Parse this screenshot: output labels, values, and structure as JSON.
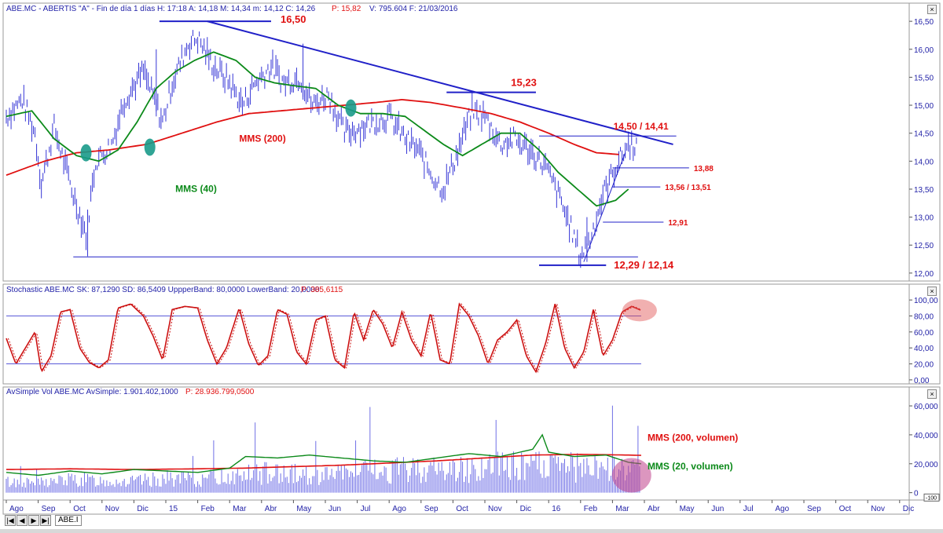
{
  "header": {
    "price": "ABE.MC - ABERTIS \"A\" - Fin de día 1 días H: 17:18 A: 14,18 M: 14,34 m: 14,12 C: 14,26",
    "price_p": "P: 15,82",
    "price_v": "V: 795.604 F: 21/03/2016",
    "stoch": "Stochastic  ABE.MC SK: 87,1290 SD: 86,5409 UppperBand: 80,0000 LowerBand: 20,0000",
    "stoch_p": "P: 385,6115",
    "vol": "AvSimple  Vol  ABE.MC AvSimple: 1.901.402,1000",
    "vol_p": "P: 28.936.799,0500"
  },
  "tabs": {
    "active": "ABE.I"
  },
  "colors": {
    "price": "#3535d6",
    "mms200": "#e01010",
    "mms40": "#0c8a1a",
    "trend": "#2020c8",
    "stoch": "#cc1010",
    "annot_red": "#e01010",
    "annot_green": "#0c8a1a",
    "band": "#5a5ad8",
    "vol_bar": "#6f6fe6"
  },
  "chart_data": [
    {
      "type": "line",
      "name": "price",
      "ylim": [
        11.9,
        16.6
      ],
      "yticks": [
        "16,50",
        "16,00",
        "15,50",
        "15,00",
        "14,50",
        "14,00",
        "13,50",
        "13,00",
        "12,50",
        "12,00"
      ],
      "ytick_values": [
        16.5,
        16.0,
        15.5,
        15.0,
        14.5,
        14.0,
        13.5,
        13.0,
        12.5,
        12.0
      ],
      "x_months": [
        "Ago",
        "Sep",
        "Oct",
        "Nov",
        "Dic",
        "15",
        "Feb",
        "Mar",
        "Abr",
        "May",
        "Jun",
        "Jul",
        "Ago",
        "Sep",
        "Oct",
        "Nov",
        "Dic",
        "16",
        "Feb",
        "Mar",
        "Abr",
        "May",
        "Jun",
        "Jul",
        "Ago",
        "Sep",
        "Oct",
        "Nov",
        "Dic"
      ],
      "x_month_indices": [
        0,
        1,
        2,
        3,
        4,
        5,
        6,
        7,
        8,
        9,
        10,
        11,
        12,
        13,
        14,
        15,
        16,
        17,
        18,
        19,
        20,
        21,
        22,
        23,
        24,
        25,
        26,
        27,
        28
      ],
      "close_anchors": [
        [
          0,
          14.8
        ],
        [
          0.5,
          15.1
        ],
        [
          0.9,
          14.5
        ],
        [
          1.1,
          13.6
        ],
        [
          1.5,
          14.6
        ],
        [
          2.1,
          13.4
        ],
        [
          2.5,
          12.7
        ],
        [
          2.8,
          14.0
        ],
        [
          3.3,
          14.3
        ],
        [
          3.7,
          15.1
        ],
        [
          4.3,
          15.6
        ],
        [
          4.9,
          14.7
        ],
        [
          5.2,
          15.4
        ],
        [
          5.7,
          16.1
        ],
        [
          6.0,
          16.2
        ],
        [
          6.5,
          15.7
        ],
        [
          7.0,
          15.4
        ],
        [
          7.4,
          15.0
        ],
        [
          7.8,
          15.4
        ],
        [
          8.3,
          15.7
        ],
        [
          8.7,
          15.4
        ],
        [
          9.2,
          15.5
        ],
        [
          9.6,
          15.0
        ],
        [
          10.1,
          15.2
        ],
        [
          10.6,
          14.5
        ],
        [
          11.1,
          14.6
        ],
        [
          11.5,
          14.7
        ],
        [
          12.0,
          14.8
        ],
        [
          12.5,
          14.4
        ],
        [
          12.9,
          14.2
        ],
        [
          13.4,
          13.7
        ],
        [
          13.7,
          13.5
        ],
        [
          14.1,
          14.1
        ],
        [
          14.6,
          14.9
        ],
        [
          15.0,
          14.8
        ],
        [
          15.5,
          14.3
        ],
        [
          15.9,
          14.4
        ],
        [
          16.4,
          14.2
        ],
        [
          16.9,
          13.9
        ],
        [
          17.3,
          13.4
        ],
        [
          17.7,
          12.8
        ],
        [
          18.0,
          12.3
        ],
        [
          18.3,
          12.6
        ],
        [
          18.7,
          13.4
        ],
        [
          19.1,
          13.9
        ],
        [
          19.5,
          14.3
        ]
      ],
      "mms40_anchors": [
        [
          0,
          14.8
        ],
        [
          0.8,
          14.9
        ],
        [
          1.5,
          14.4
        ],
        [
          2.2,
          14.1
        ],
        [
          2.9,
          14.0
        ],
        [
          3.5,
          14.2
        ],
        [
          4.1,
          14.7
        ],
        [
          4.7,
          15.3
        ],
        [
          5.3,
          15.6
        ],
        [
          5.9,
          15.8
        ],
        [
          6.5,
          15.95
        ],
        [
          7.2,
          15.8
        ],
        [
          7.8,
          15.5
        ],
        [
          8.4,
          15.4
        ],
        [
          9.0,
          15.35
        ],
        [
          9.7,
          15.3
        ],
        [
          10.4,
          15.0
        ],
        [
          11.1,
          14.85
        ],
        [
          11.8,
          14.85
        ],
        [
          12.5,
          14.8
        ],
        [
          13.1,
          14.55
        ],
        [
          13.7,
          14.3
        ],
        [
          14.3,
          14.1
        ],
        [
          14.9,
          14.3
        ],
        [
          15.5,
          14.5
        ],
        [
          16.1,
          14.5
        ],
        [
          16.7,
          14.2
        ],
        [
          17.3,
          13.8
        ],
        [
          17.9,
          13.5
        ],
        [
          18.5,
          13.2
        ],
        [
          19.1,
          13.3
        ],
        [
          19.5,
          13.5
        ]
      ],
      "mms200_anchors": [
        [
          0,
          13.75
        ],
        [
          1.2,
          14.0
        ],
        [
          2.2,
          14.15
        ],
        [
          3.2,
          14.2
        ],
        [
          4.4,
          14.3
        ],
        [
          5.5,
          14.5
        ],
        [
          6.6,
          14.7
        ],
        [
          7.6,
          14.85
        ],
        [
          8.6,
          14.9
        ],
        [
          9.6,
          14.95
        ],
        [
          10.6,
          15.0
        ],
        [
          11.6,
          15.05
        ],
        [
          12.4,
          15.1
        ],
        [
          13.3,
          15.05
        ],
        [
          14.3,
          14.95
        ],
        [
          15.2,
          14.85
        ],
        [
          16.1,
          14.7
        ],
        [
          17.0,
          14.5
        ],
        [
          17.8,
          14.3
        ],
        [
          18.5,
          14.15
        ],
        [
          19.2,
          14.12
        ]
      ],
      "mms200_label": "MMS (200)",
      "mms40_label": "MMS (40)",
      "levels": [
        {
          "label": "16,50",
          "value": 16.5,
          "x1": 4.8,
          "x2": 8.3
        },
        {
          "label": "15,23",
          "value": 15.23,
          "x1": 13.8,
          "x2": 16.6
        },
        {
          "label": "14,50 / 14,41",
          "value": 14.45,
          "x1": 16.7,
          "x2": 21.0
        },
        {
          "label": "13,88",
          "value": 13.88,
          "x1": 19.0,
          "x2": 21.4
        },
        {
          "label": "13,56 / 13,51",
          "value": 13.54,
          "x1": 19.0,
          "x2": 20.5
        },
        {
          "label": "12,91",
          "value": 12.91,
          "x1": 18.7,
          "x2": 20.6
        },
        {
          "label": "12,29 / 12,14",
          "value": 12.14,
          "x1": 16.7,
          "x2": 18.8
        }
      ],
      "support_line": {
        "value": 12.29,
        "x1": 2.1,
        "x2": 19.8
      },
      "trendline": {
        "x1": 6.3,
        "y1": 16.5,
        "x2": 20.9,
        "y2": 14.3
      },
      "rising_line": {
        "x1": 18.1,
        "y1": 12.2,
        "x2": 19.4,
        "y2": 14.15
      },
      "crossovers": [
        [
          2.5,
          14.15
        ],
        [
          4.5,
          14.25
        ],
        [
          10.8,
          14.95
        ]
      ]
    },
    {
      "type": "line",
      "name": "stochastic",
      "ylim": [
        -5,
        108
      ],
      "yticks": [
        "100,00",
        "80,00",
        "60,00",
        "40,00",
        "20,00",
        "0,00"
      ],
      "ytick_values": [
        100,
        80,
        60,
        40,
        20,
        0
      ],
      "bands": [
        80,
        20
      ],
      "sk_anchors": [
        [
          0,
          52
        ],
        [
          0.3,
          20
        ],
        [
          0.6,
          40
        ],
        [
          0.9,
          60
        ],
        [
          1.1,
          10
        ],
        [
          1.4,
          30
        ],
        [
          1.7,
          85
        ],
        [
          2.0,
          88
        ],
        [
          2.3,
          40
        ],
        [
          2.6,
          22
        ],
        [
          2.9,
          15
        ],
        [
          3.2,
          25
        ],
        [
          3.5,
          90
        ],
        [
          3.9,
          95
        ],
        [
          4.3,
          80
        ],
        [
          4.6,
          55
        ],
        [
          4.9,
          25
        ],
        [
          5.2,
          88
        ],
        [
          5.6,
          92
        ],
        [
          6.0,
          90
        ],
        [
          6.3,
          50
        ],
        [
          6.6,
          20
        ],
        [
          6.9,
          40
        ],
        [
          7.3,
          90
        ],
        [
          7.6,
          45
        ],
        [
          7.9,
          18
        ],
        [
          8.2,
          30
        ],
        [
          8.5,
          88
        ],
        [
          8.8,
          82
        ],
        [
          9.1,
          35
        ],
        [
          9.4,
          20
        ],
        [
          9.7,
          75
        ],
        [
          10.0,
          80
        ],
        [
          10.3,
          25
        ],
        [
          10.6,
          15
        ],
        [
          10.9,
          85
        ],
        [
          11.2,
          50
        ],
        [
          11.5,
          88
        ],
        [
          11.8,
          70
        ],
        [
          12.1,
          40
        ],
        [
          12.4,
          85
        ],
        [
          12.7,
          50
        ],
        [
          13.0,
          30
        ],
        [
          13.3,
          85
        ],
        [
          13.6,
          25
        ],
        [
          13.9,
          20
        ],
        [
          14.2,
          95
        ],
        [
          14.5,
          80
        ],
        [
          14.8,
          55
        ],
        [
          15.1,
          20
        ],
        [
          15.4,
          50
        ],
        [
          15.7,
          60
        ],
        [
          16.0,
          75
        ],
        [
          16.3,
          30
        ],
        [
          16.6,
          10
        ],
        [
          16.9,
          45
        ],
        [
          17.2,
          95
        ],
        [
          17.5,
          40
        ],
        [
          17.8,
          15
        ],
        [
          18.1,
          35
        ],
        [
          18.4,
          88
        ],
        [
          18.7,
          30
        ],
        [
          19.0,
          50
        ],
        [
          19.3,
          85
        ],
        [
          19.6,
          92
        ],
        [
          19.9,
          87
        ]
      ],
      "highlight": [
        19.9,
        87
      ]
    },
    {
      "type": "bar",
      "name": "volume",
      "ylim": [
        -4,
        66
      ],
      "yticks": [
        "60,000",
        "40,000",
        "20,000",
        "0"
      ],
      "ytick_values": [
        60,
        40,
        20,
        0
      ],
      "ytick_extra": "-100",
      "vol_anchors": [
        [
          0,
          10
        ],
        [
          1,
          9
        ],
        [
          2,
          12
        ],
        [
          3,
          11
        ],
        [
          4,
          10
        ],
        [
          5,
          13
        ],
        [
          6,
          12
        ],
        [
          7,
          15
        ],
        [
          8,
          18
        ],
        [
          9,
          17
        ],
        [
          10,
          16
        ],
        [
          11,
          18
        ],
        [
          12,
          20
        ],
        [
          13,
          22
        ],
        [
          14,
          21
        ],
        [
          15,
          23
        ],
        [
          16,
          25
        ],
        [
          17,
          24
        ],
        [
          18,
          23
        ],
        [
          19,
          22
        ],
        [
          19.9,
          20
        ]
      ],
      "mms200_vol_anchors": [
        [
          0,
          16
        ],
        [
          2,
          16.5
        ],
        [
          4,
          16
        ],
        [
          6,
          16.5
        ],
        [
          7.5,
          17
        ],
        [
          9,
          18
        ],
        [
          10.5,
          19
        ],
        [
          12,
          20.5
        ],
        [
          13.5,
          22
        ],
        [
          15,
          24
        ],
        [
          16.5,
          26
        ],
        [
          18,
          26.5
        ],
        [
          19.5,
          26
        ],
        [
          19.9,
          25.8
        ]
      ],
      "mms20_vol_anchors": [
        [
          0,
          14
        ],
        [
          1,
          12
        ],
        [
          2,
          15
        ],
        [
          3,
          13
        ],
        [
          4,
          16
        ],
        [
          5,
          15
        ],
        [
          6,
          14
        ],
        [
          7,
          17
        ],
        [
          7.5,
          25
        ],
        [
          8.5,
          24
        ],
        [
          9.5,
          26
        ],
        [
          10.5,
          24
        ],
        [
          11.5,
          22
        ],
        [
          12.5,
          21
        ],
        [
          13.5,
          24
        ],
        [
          14.5,
          27
        ],
        [
          15.5,
          25
        ],
        [
          16.5,
          30
        ],
        [
          16.8,
          40
        ],
        [
          17.0,
          28
        ],
        [
          17.8,
          25
        ],
        [
          18.8,
          26
        ],
        [
          19.5,
          21
        ],
        [
          19.9,
          20
        ]
      ],
      "mms200_label": "MMS (200, volumen)",
      "mms20_label": "MMS (20, volumen)"
    }
  ]
}
